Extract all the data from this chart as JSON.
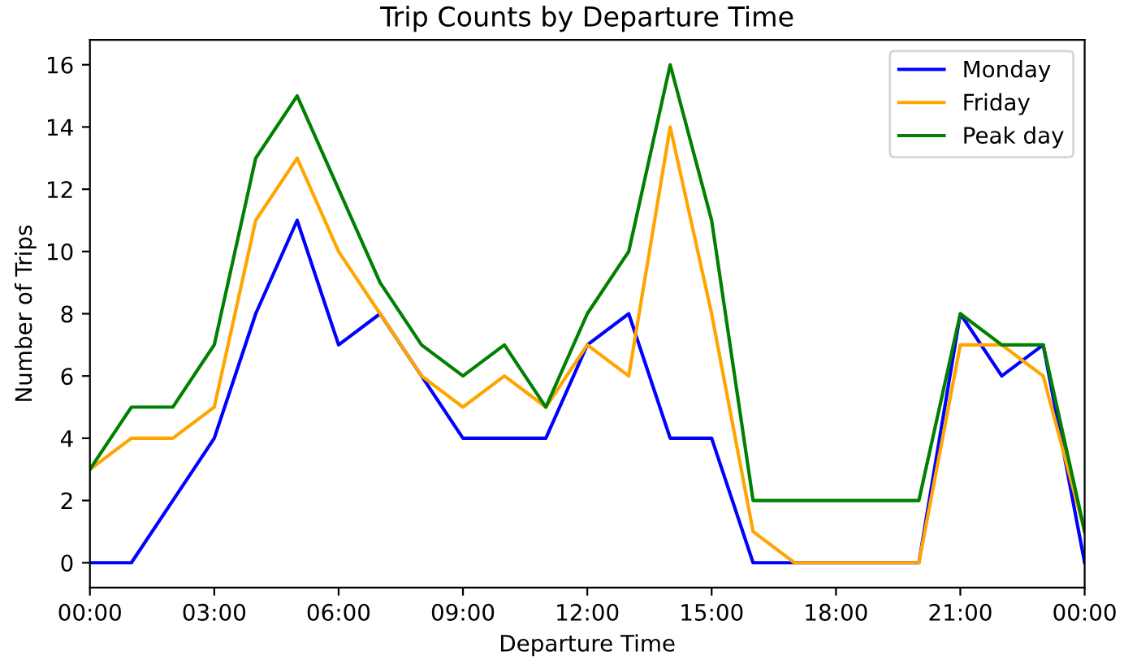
{
  "chart_data": {
    "type": "line",
    "title": "Trip Counts by Departure Time",
    "xlabel": "Departure Time",
    "ylabel": "Number of Trips",
    "x": [
      0,
      1,
      2,
      3,
      4,
      5,
      6,
      7,
      8,
      9,
      10,
      11,
      12,
      13,
      14,
      15,
      16,
      17,
      18,
      19,
      20,
      21,
      22,
      23,
      24
    ],
    "series": [
      {
        "name": "Monday",
        "color": "#0000ff",
        "values": [
          0,
          0,
          2,
          4,
          8,
          11,
          7,
          8,
          6,
          4,
          4,
          4,
          7,
          8,
          4,
          4,
          0,
          0,
          0,
          0,
          0,
          8,
          6,
          7,
          0
        ]
      },
      {
        "name": "Friday",
        "color": "#ffa500",
        "values": [
          3,
          4,
          4,
          5,
          11,
          13,
          10,
          8,
          6,
          5,
          6,
          5,
          7,
          6,
          14,
          8,
          1,
          0,
          0,
          0,
          0,
          7,
          7,
          6,
          1
        ]
      },
      {
        "name": "Peak day",
        "color": "#008000",
        "values": [
          3,
          5,
          5,
          7,
          13,
          15,
          12,
          9,
          7,
          6,
          7,
          5,
          8,
          10,
          16,
          11,
          2,
          2,
          2,
          2,
          2,
          8,
          7,
          7,
          1
        ]
      }
    ],
    "xlim": [
      0,
      24
    ],
    "xticks": [
      {
        "value": 0,
        "label": "00:00"
      },
      {
        "value": 3,
        "label": "03:00"
      },
      {
        "value": 6,
        "label": "06:00"
      },
      {
        "value": 9,
        "label": "09:00"
      },
      {
        "value": 12,
        "label": "12:00"
      },
      {
        "value": 15,
        "label": "15:00"
      },
      {
        "value": 18,
        "label": "18:00"
      },
      {
        "value": 21,
        "label": "21:00"
      },
      {
        "value": 24,
        "label": "00:00"
      }
    ],
    "ylim": [
      -0.8,
      16.8
    ],
    "yticks": [
      0,
      2,
      4,
      6,
      8,
      10,
      12,
      14,
      16
    ],
    "legend": "top right",
    "grid": false,
    "marker": "none",
    "line_style": "solid"
  }
}
